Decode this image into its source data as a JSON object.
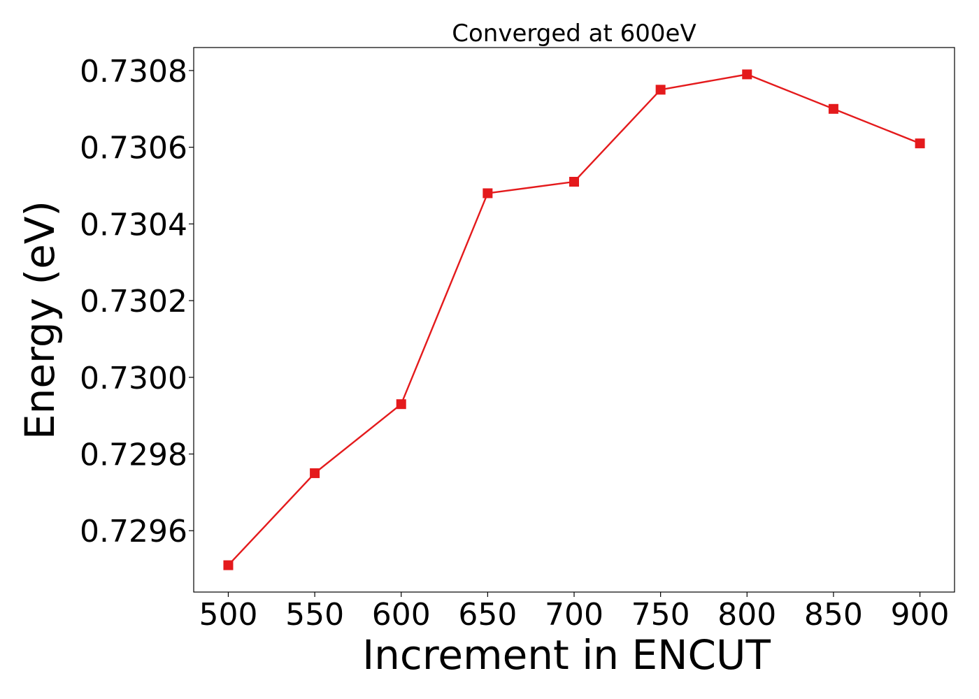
{
  "chart_data": {
    "type": "line",
    "title": "Converged at 600eV",
    "xlabel": "Increment in ENCUT",
    "ylabel": "Energy (eV)",
    "x": [
      500,
      550,
      600,
      650,
      700,
      750,
      800,
      850,
      900
    ],
    "xticks": [
      "500",
      "550",
      "600",
      "650",
      "700",
      "750",
      "800",
      "850",
      "900"
    ],
    "yticks": [
      "0.7296",
      "0.7298",
      "0.7300",
      "0.7302",
      "0.7304",
      "0.7306",
      "0.7308"
    ],
    "series": [
      {
        "values": [
          0.72951,
          0.72975,
          0.72993,
          0.73048,
          0.73051,
          0.73075,
          0.73079,
          0.7307,
          0.73061
        ],
        "color": "#e41a1c",
        "marker": "square"
      }
    ],
    "xlim": [
      480,
      920
    ],
    "ylim": [
      0.72944,
      0.73086
    ],
    "grid": false,
    "legend": false
  }
}
